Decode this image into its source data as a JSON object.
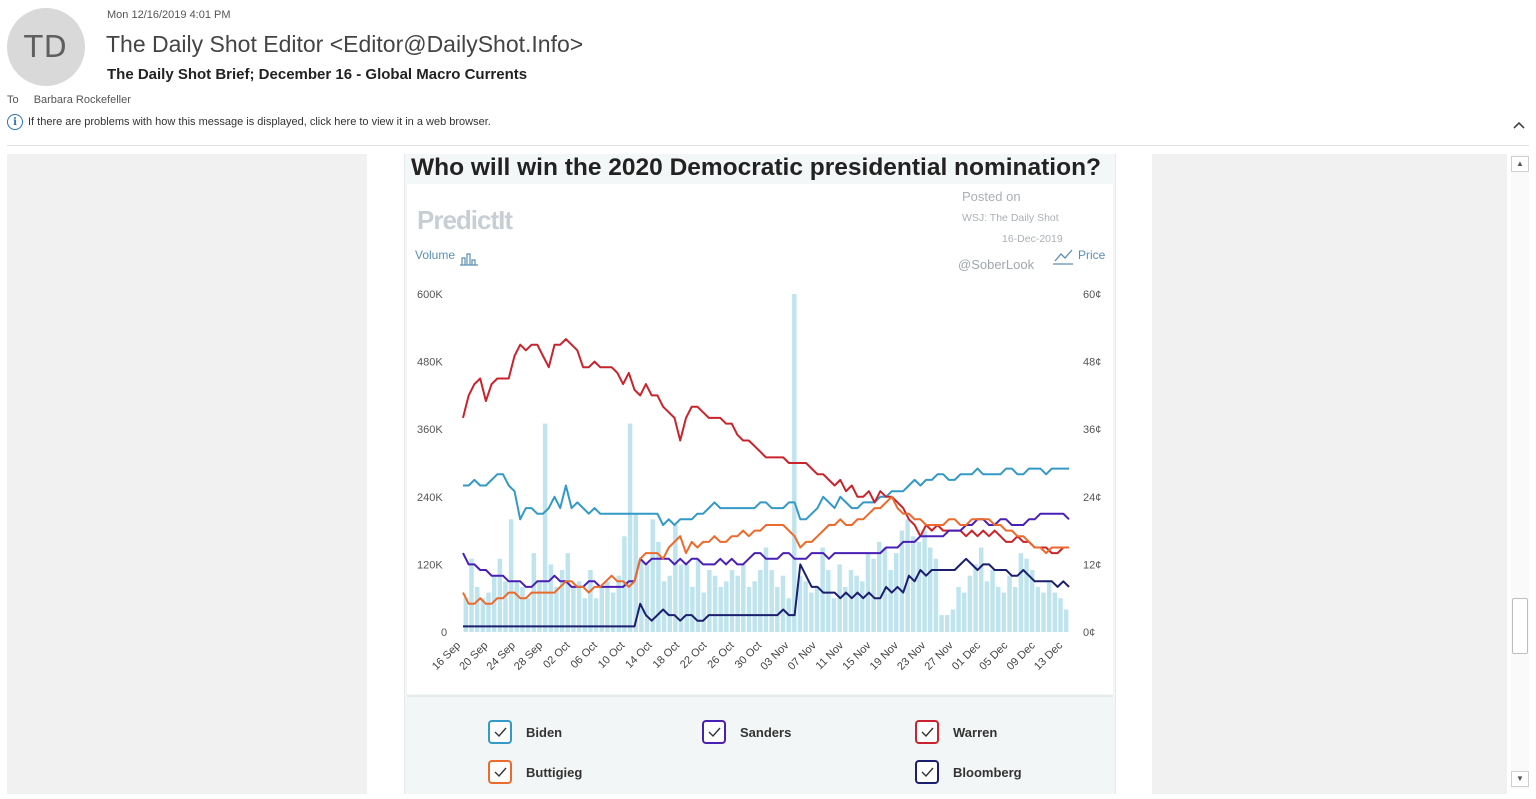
{
  "email": {
    "avatar_initials": "TD",
    "datetime": "Mon 12/16/2019 4:01 PM",
    "sender": "The Daily Shot Editor <Editor@DailyShot.Info>",
    "subject": "The Daily Shot Brief; December 16 - Global Macro Currents",
    "to_label": "To",
    "to_name": "Barbara Rockefeller",
    "info_text": "If there are problems with how this message is displayed, click here to view it in a web browser."
  },
  "icons": {
    "info": "info-icon",
    "collapse": "chevron-up-icon",
    "scroll_up": "scroll-up-arrow-icon",
    "scroll_down": "scroll-down-arrow-icon",
    "checkbox": "checkbox-checked-icon",
    "volume": "bar-chart-icon",
    "price": "line-chart-icon"
  },
  "chart_data": {
    "type": "line",
    "title": "Who will win the 2020 Democratic presidential nomination?",
    "watermark": "PredictIt",
    "posted_lines": [
      "Posted on",
      "WSJ: The Daily Shot",
      "16-Dec-2019"
    ],
    "handle": "@SoberLook",
    "left_axis_label": "Volume",
    "right_axis_label": "Price",
    "left_ticks": [
      "0",
      "120K",
      "240K",
      "360K",
      "480K",
      "600K"
    ],
    "right_ticks": [
      "0¢",
      "12¢",
      "24¢",
      "36¢",
      "48¢",
      "60¢"
    ],
    "left_range": [
      0,
      600000
    ],
    "right_range": [
      0,
      60
    ],
    "x_labels": [
      "16 Sep",
      "20 Sep",
      "24 Sep",
      "28 Sep",
      "02 Oct",
      "06 Oct",
      "10 Oct",
      "14 Oct",
      "18 Oct",
      "22 Oct",
      "26 Oct",
      "30 Oct",
      "03 Nov",
      "07 Nov",
      "11 Nov",
      "15 Nov",
      "19 Nov",
      "23 Nov",
      "27 Nov",
      "01 Dec",
      "05 Dec",
      "09 Dec",
      "13 Dec"
    ],
    "grid": false,
    "legend_position": "bottom",
    "volume_bars": [
      60000,
      130000,
      80000,
      60000,
      70000,
      100000,
      130000,
      90000,
      200000,
      90000,
      80000,
      60000,
      140000,
      90000,
      370000,
      120000,
      80000,
      110000,
      140000,
      80000,
      90000,
      60000,
      110000,
      60000,
      80000,
      90000,
      70000,
      100000,
      170000,
      370000,
      210000,
      130000,
      120000,
      200000,
      160000,
      90000,
      100000,
      190000,
      120000,
      120000,
      80000,
      130000,
      70000,
      110000,
      100000,
      80000,
      90000,
      110000,
      100000,
      120000,
      80000,
      90000,
      110000,
      150000,
      110000,
      80000,
      100000,
      60000,
      600000,
      100000,
      90000,
      70000,
      80000,
      150000,
      110000,
      60000,
      120000,
      80000,
      110000,
      100000,
      90000,
      140000,
      130000,
      160000,
      150000,
      110000,
      140000,
      180000,
      200000,
      170000,
      160000,
      180000,
      150000,
      130000,
      30000,
      30000,
      40000,
      80000,
      70000,
      100000,
      120000,
      150000,
      90000,
      110000,
      80000,
      70000,
      100000,
      80000,
      140000,
      130000,
      110000,
      80000,
      70000,
      90000,
      70000,
      60000,
      40000
    ],
    "series": [
      {
        "name": "Biden",
        "color": "#3399c6",
        "values": [
          26,
          26,
          27,
          26,
          26,
          27,
          28,
          28,
          26,
          25,
          20,
          22,
          22,
          21,
          21,
          22,
          24,
          22,
          26,
          22,
          23,
          22,
          21,
          22,
          21,
          21,
          21,
          21,
          21,
          21,
          21,
          21,
          21,
          21,
          21,
          19,
          20,
          19,
          20,
          20,
          20,
          21,
          21,
          22,
          23,
          22,
          22,
          22,
          22,
          22,
          22,
          22,
          23,
          23,
          22,
          22,
          22,
          23,
          23,
          20,
          20,
          21,
          22,
          24,
          23,
          22,
          24,
          23,
          22,
          22,
          23,
          23,
          23,
          24,
          24,
          25,
          25,
          25,
          26,
          27,
          26,
          27,
          27,
          28,
          28,
          27,
          27,
          28,
          28,
          28,
          29,
          28,
          28,
          28,
          28,
          29,
          29,
          28,
          28,
          29,
          29,
          29,
          28,
          29,
          29,
          29,
          29
        ]
      },
      {
        "name": "Warren",
        "color": "#c9232b",
        "values": [
          38,
          42,
          44,
          45,
          41,
          44,
          45,
          45,
          45,
          49,
          51,
          50,
          51,
          51,
          49,
          47,
          51,
          51,
          52,
          51,
          50,
          47,
          47,
          48,
          47,
          47,
          47,
          46,
          44,
          46,
          43,
          42,
          44,
          42,
          42,
          40,
          39,
          38,
          34,
          38,
          40,
          40,
          39,
          38,
          38,
          38,
          37,
          37,
          35,
          34,
          34,
          33,
          32,
          31,
          31,
          31,
          31,
          30,
          30,
          30,
          30,
          29,
          28,
          28,
          27,
          26,
          27,
          25,
          26,
          24,
          24,
          25,
          23,
          25,
          24,
          24,
          23,
          22,
          20,
          19,
          17,
          19,
          18,
          19,
          18,
          18,
          18,
          18,
          17,
          18,
          17,
          18,
          17,
          18,
          17,
          16,
          16,
          17,
          16,
          16,
          15,
          15,
          15,
          14,
          14,
          15,
          15
        ]
      },
      {
        "name": "Sanders",
        "color": "#4a1fb5",
        "values": [
          14,
          12,
          12,
          11,
          11,
          10,
          10,
          10,
          9,
          9,
          9,
          8,
          8,
          9,
          9,
          9,
          10,
          9,
          9,
          8,
          8,
          8,
          9,
          9,
          8,
          8,
          8,
          8,
          8,
          9,
          9,
          13,
          12,
          13,
          13,
          13,
          13,
          12,
          13,
          12,
          13,
          13,
          12,
          12,
          12,
          13,
          12,
          13,
          12,
          12,
          13,
          14,
          14,
          13,
          13,
          13,
          14,
          14,
          13,
          13,
          13,
          14,
          14,
          14,
          13,
          14,
          14,
          14,
          14,
          14,
          14,
          14,
          14,
          14,
          15,
          15,
          15,
          16,
          16,
          16,
          17,
          17,
          17,
          17,
          17,
          18,
          18,
          18,
          19,
          19,
          20,
          20,
          19,
          19,
          20,
          20,
          19,
          19,
          19,
          20,
          20,
          21,
          21,
          21,
          21,
          21,
          20
        ]
      },
      {
        "name": "Buttigieg",
        "color": "#ec6a2c",
        "values": [
          7,
          5,
          5,
          6,
          5,
          5,
          6,
          6,
          7,
          7,
          6,
          6,
          7,
          7,
          7,
          7,
          7,
          8,
          9,
          9,
          8,
          8,
          7,
          8,
          8,
          9,
          10,
          9,
          9,
          8,
          9,
          13,
          14,
          14,
          14,
          13,
          15,
          16,
          17,
          14,
          16,
          15,
          16,
          16,
          17,
          16,
          16,
          17,
          17,
          18,
          17,
          18,
          18,
          19,
          19,
          19,
          19,
          18,
          17,
          15,
          16,
          16,
          17,
          18,
          19,
          19,
          20,
          19,
          19,
          20,
          20,
          21,
          22,
          22,
          23,
          24,
          22,
          21,
          21,
          20,
          20,
          19,
          19,
          19,
          19,
          20,
          20,
          19,
          19,
          20,
          20,
          20,
          20,
          19,
          19,
          18,
          18,
          17,
          17,
          16,
          15,
          15,
          14,
          15,
          15,
          15,
          15
        ]
      },
      {
        "name": "Bloomberg",
        "color": "#1b1f6e",
        "values": [
          1,
          1,
          1,
          1,
          1,
          1,
          1,
          1,
          1,
          1,
          1,
          1,
          1,
          1,
          1,
          1,
          1,
          1,
          1,
          1,
          1,
          1,
          1,
          1,
          1,
          1,
          1,
          1,
          1,
          1,
          1,
          5,
          3,
          2,
          3,
          4,
          3,
          3,
          2,
          3,
          3,
          2,
          2,
          3,
          3,
          3,
          3,
          3,
          3,
          3,
          3,
          3,
          3,
          3,
          3,
          3,
          4,
          3,
          3,
          12,
          10,
          8,
          8,
          7,
          7,
          7,
          6,
          7,
          6,
          7,
          6,
          7,
          6,
          6,
          8,
          7,
          8,
          7,
          10,
          9,
          11,
          10,
          11,
          11,
          11,
          11,
          11,
          12,
          13,
          12,
          11,
          12,
          12,
          11,
          11,
          11,
          10,
          10,
          11,
          10,
          9,
          9,
          9,
          9,
          8,
          9,
          8
        ]
      }
    ]
  }
}
